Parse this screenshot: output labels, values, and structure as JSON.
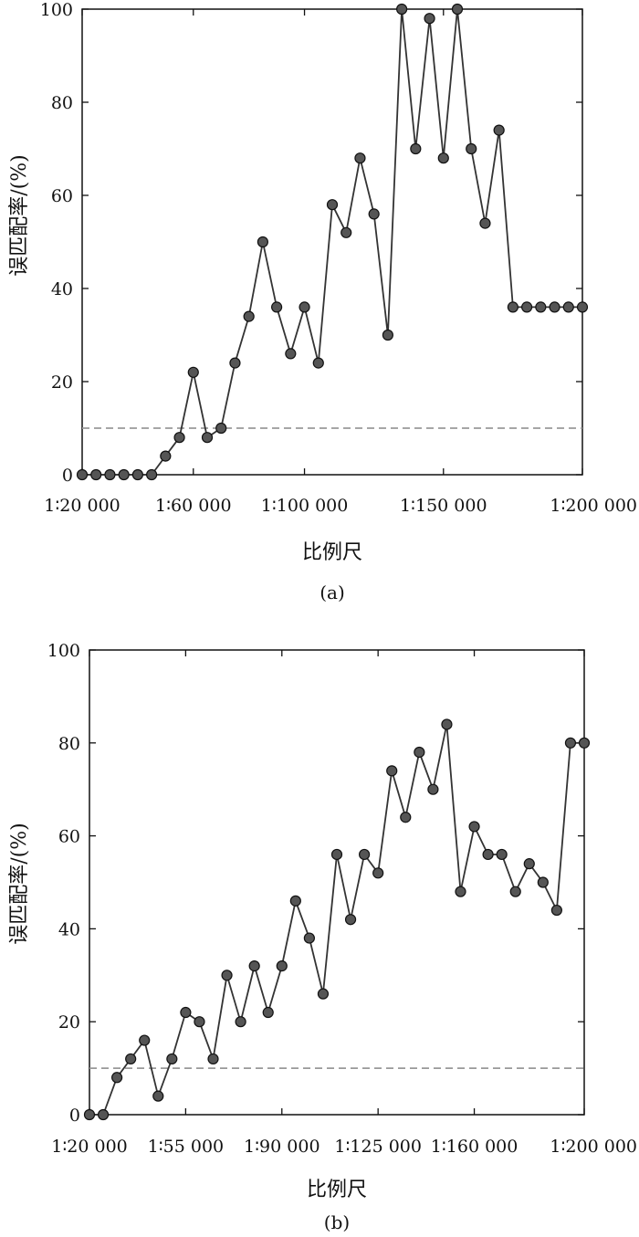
{
  "chart_data": [
    {
      "type": "line",
      "xlabel": "比例尺",
      "ylabel": "误匹配率/(%)",
      "caption": "(a)",
      "ylim": [
        0,
        100
      ],
      "yticks": [
        "0",
        "20",
        "40",
        "60",
        "80",
        "100"
      ],
      "xlim": [
        20000,
        200000
      ],
      "xticks": [
        {
          "value": 20000,
          "label": "1∶20 000"
        },
        {
          "value": 60000,
          "label": "1∶60 000"
        },
        {
          "value": 100000,
          "label": "1∶100 000"
        },
        {
          "value": 150000,
          "label": "1∶150 000"
        },
        {
          "value": 200000,
          "label": "1∶200 000"
        }
      ],
      "threshold": 10,
      "grid": false,
      "series": [
        {
          "x": [
            20000,
            25000,
            30000,
            35000,
            40000,
            45000,
            50000,
            55000,
            60000,
            65000,
            70000,
            75000,
            80000,
            85000,
            90000,
            95000,
            100000,
            105000,
            110000,
            115000,
            120000,
            125000,
            130000,
            135000,
            140000,
            145000,
            150000,
            155000,
            160000,
            165000,
            170000,
            175000,
            180000,
            185000,
            190000,
            195000,
            200000
          ],
          "values": [
            0,
            0,
            0,
            0,
            0,
            0,
            4,
            8,
            22,
            8,
            10,
            24,
            34,
            50,
            36,
            26,
            36,
            24,
            58,
            52,
            68,
            56,
            30,
            100,
            70,
            98,
            68,
            100,
            70,
            54,
            74,
            36,
            36,
            36,
            36,
            36,
            36
          ]
        }
      ]
    },
    {
      "type": "line",
      "xlabel": "比例尺",
      "ylabel": "误匹配率/(%)",
      "caption": "(b)",
      "ylim": [
        0,
        100
      ],
      "yticks": [
        "0",
        "20",
        "40",
        "60",
        "80",
        "100"
      ],
      "xlim": [
        20000,
        200000
      ],
      "xticks": [
        {
          "value": 20000,
          "label": "1∶20 000"
        },
        {
          "value": 55000,
          "label": "1∶55 000"
        },
        {
          "value": 90000,
          "label": "1∶90 000"
        },
        {
          "value": 125000,
          "label": "1∶125 000"
        },
        {
          "value": 160000,
          "label": "1∶160 000"
        },
        {
          "value": 200000,
          "label": "1∶200 000"
        }
      ],
      "threshold": 10,
      "grid": false,
      "series": [
        {
          "x": [
            20000,
            25000,
            30000,
            35000,
            40000,
            45000,
            50000,
            55000,
            60000,
            65000,
            70000,
            75000,
            80000,
            85000,
            90000,
            95000,
            100000,
            105000,
            110000,
            115000,
            120000,
            125000,
            130000,
            135000,
            140000,
            145000,
            150000,
            155000,
            160000,
            165000,
            170000,
            175000,
            180000,
            185000,
            190000,
            195000,
            200000
          ],
          "values": [
            0,
            0,
            8,
            12,
            16,
            4,
            12,
            22,
            20,
            12,
            30,
            20,
            32,
            22,
            32,
            46,
            38,
            26,
            56,
            42,
            56,
            52,
            74,
            64,
            78,
            70,
            84,
            48,
            62,
            56,
            56,
            48,
            54,
            50,
            44,
            80,
            80
          ]
        }
      ]
    }
  ]
}
